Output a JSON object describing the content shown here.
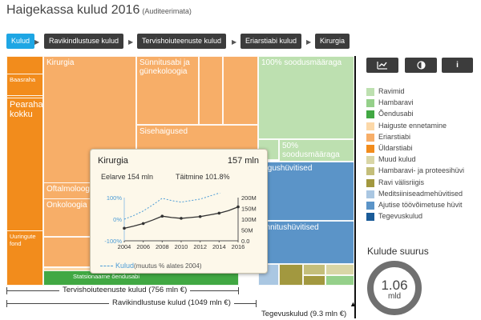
{
  "page": {
    "title": "Haigekassa kulud 2016",
    "subtitle": "(Auditeerimata)"
  },
  "breadcrumbs": [
    "Kulud",
    "Ravikindlustuse kulud",
    "Tervishoiuteenuste kulud",
    "Eriarstiabi kulud",
    "Kirurgia"
  ],
  "treemap": {
    "labels": {
      "kirurgia": "Kirurgia",
      "sunnitusabi": "Sünnitusabi ja günekoloogia",
      "sisehaigused": "Sisehaigused",
      "oftalmoloogia": "Oftalmoloogia",
      "onkoloogia": "Onkoloogia",
      "baasraha": "Baasraha",
      "pearaha": "Pearaha kokku",
      "uuringute_fond": "Uuringute fond",
      "soodus100": "100% soodusmääraga",
      "soodus50": "50% soodusmääraga",
      "haigushuvitised": "aigushüvitised",
      "sunnitushuvitised": "ünnitushüvitised",
      "statsionaarne": "Statsionaarne õendusabi"
    }
  },
  "tooltip": {
    "title": "Kirurgia",
    "total": "157 mln",
    "budget": "Eelarve 154 mln",
    "execution": "Täitmine 101.8%",
    "legend_series": "Kulud",
    "legend_note": "(muutus % alates 2004)"
  },
  "chart_data": {
    "type": "line",
    "title": "",
    "x": [
      2004,
      2005,
      2006,
      2007,
      2008,
      2009,
      2010,
      2011,
      2012,
      2013,
      2014,
      2015,
      2016
    ],
    "x_ticks": [
      "2004",
      "2006",
      "2008",
      "2010",
      "2012",
      "2014",
      "2016"
    ],
    "series": [
      {
        "name": "Kulud",
        "axis": "right",
        "unit": "M",
        "values": [
          58,
          68,
          80,
          96,
          114,
          108,
          104,
          108,
          112,
          120,
          128,
          140,
          157
        ],
        "color": "#333333"
      },
      {
        "axis": "left",
        "unit": "%",
        "values": [
          0,
          17,
          38,
          66,
          97,
          86,
          79,
          86,
          93,
          107,
          121,
          141,
          171
        ],
        "color": "#4c9cd6",
        "style": "dashed"
      }
    ],
    "y_right_ticks": [
      "200M",
      "150M",
      "100M",
      "50M",
      "0.0"
    ],
    "y_right_range": [
      0,
      200
    ],
    "y_left_ticks": [
      "100%",
      "0%",
      "-100%"
    ],
    "y_left_range": [
      -100,
      100
    ]
  },
  "measures": {
    "tervishoiuteenuste": "Tervishoiuteenuste kulud (756 mln €)",
    "ravikindlustuse": "Ravikindlustuse kulud (1049 mln €)",
    "tegevuskulud": "Tegevuskulud (9.3 mln €)"
  },
  "controls": {
    "chart_icon": "line-chart-icon",
    "contrast_icon": "contrast-icon",
    "info_label": "i"
  },
  "legend": [
    {
      "label": "Ravimid",
      "color": "#bde0b0"
    },
    {
      "label": "Hambaravi",
      "color": "#95d08a"
    },
    {
      "label": "Õendusabi",
      "color": "#41a843"
    },
    {
      "label": "Haiguste ennetamine",
      "color": "#fcd8a8"
    },
    {
      "label": "Eriarstiabi",
      "color": "#f7ae68"
    },
    {
      "label": "Üldarstiabi",
      "color": "#f28c1c"
    },
    {
      "label": "Muud kulud",
      "color": "#d9d6a6"
    },
    {
      "label": "Hambaravi- ja proteesihüvi",
      "color": "#c4be7a"
    },
    {
      "label": "Ravi välisriigis",
      "color": "#a2983f"
    },
    {
      "label": "Meditsiiniseadmehüvitised",
      "color": "#aac7e2"
    },
    {
      "label": "Ajutise töövõimetuse hüvit",
      "color": "#5b94c8"
    },
    {
      "label": "Tegevuskulud",
      "color": "#1a5b98"
    }
  ],
  "size": {
    "title": "Kulude suurus",
    "value": "1.06",
    "unit": "mld"
  }
}
